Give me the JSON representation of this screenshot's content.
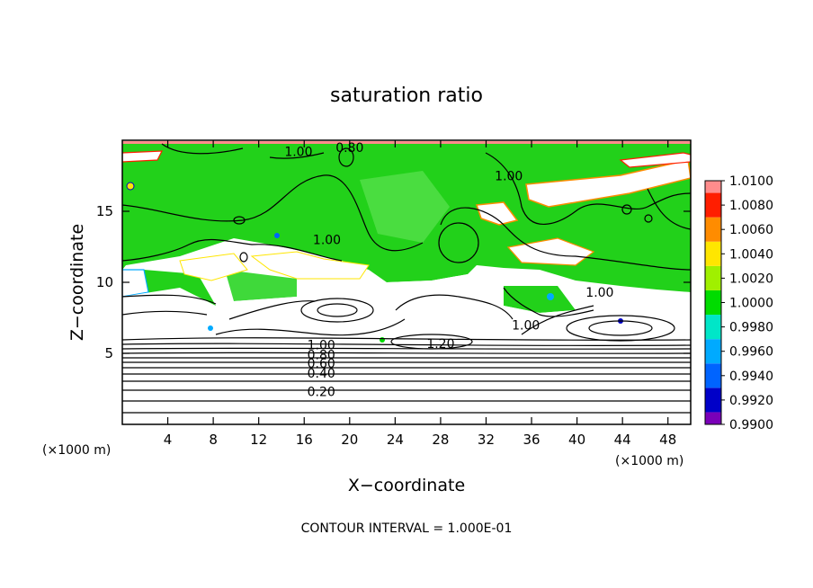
{
  "chart_data": {
    "type": "heatmap",
    "title": "saturation ratio",
    "xlabel": "X−coordinate",
    "ylabel": "Z−coordinate",
    "x_unit_left": "(×1000 m)",
    "x_unit_right": "(×1000 m)",
    "xlim": [
      0,
      50
    ],
    "ylim": [
      0,
      20
    ],
    "x_ticks": [
      4,
      8,
      12,
      16,
      20,
      24,
      28,
      32,
      36,
      40,
      44,
      48
    ],
    "y_ticks": [
      5,
      10,
      15
    ],
    "footer": "CONTOUR INTERVAL = 1.000E-01",
    "colorbar": {
      "levels": [
        0.99,
        0.992,
        0.994,
        0.996,
        0.998,
        1.0,
        1.002,
        1.004,
        1.006,
        1.008,
        1.01
      ],
      "labels": [
        "0.9900",
        "0.9920",
        "0.9940",
        "0.9960",
        "0.9980",
        "1.0000",
        "1.0020",
        "1.0040",
        "1.0060",
        "1.0080",
        "1.0100"
      ],
      "colors": [
        "#7a00b8",
        "#0000c8",
        "#0064ff",
        "#00aaff",
        "#00e6c8",
        "#00dc00",
        "#a0f000",
        "#ffe600",
        "#ff8c00",
        "#ff1e00",
        "#ff8c8c"
      ]
    },
    "contour_labels": [
      {
        "text": "1.00",
        "x": 15.5,
        "z": 19.2
      },
      {
        "text": "0.80",
        "x": 20,
        "z": 19.5
      },
      {
        "text": "1.00",
        "x": 34,
        "z": 17.5
      },
      {
        "text": "1.00",
        "x": 18,
        "z": 13
      },
      {
        "text": "1.00",
        "x": 42,
        "z": 9.3
      },
      {
        "text": "1.00",
        "x": 35.5,
        "z": 7
      },
      {
        "text": "1.20",
        "x": 28,
        "z": 5.7
      },
      {
        "text": "1.00",
        "x": 17.5,
        "z": 5.6
      },
      {
        "text": "0.80",
        "x": 17.5,
        "z": 4.9
      },
      {
        "text": "0.60",
        "x": 17.5,
        "z": 4.3
      },
      {
        "text": "0.40",
        "x": 17.5,
        "z": 3.6
      },
      {
        "text": "0.20",
        "x": 17.5,
        "z": 2.3
      }
    ]
  }
}
